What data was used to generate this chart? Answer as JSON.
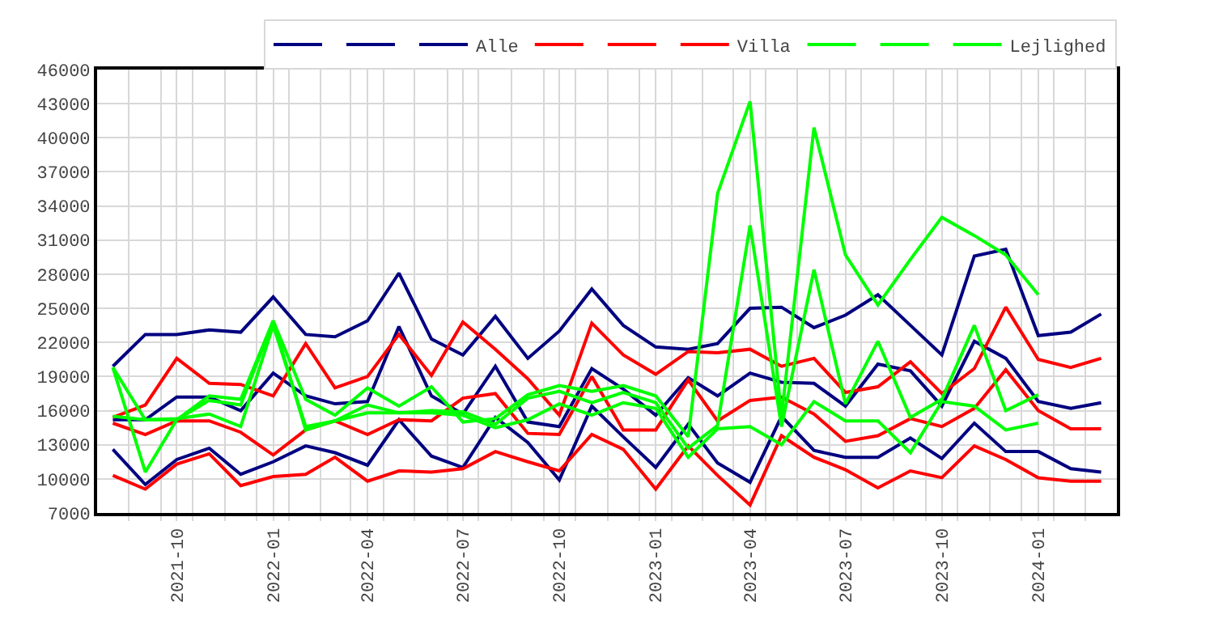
{
  "chart_data": {
    "type": "line",
    "x": [
      "2021-08",
      "2021-09",
      "2021-10",
      "2021-11",
      "2021-12",
      "2022-01",
      "2022-02",
      "2022-03",
      "2022-04",
      "2022-05",
      "2022-06",
      "2022-07",
      "2022-08",
      "2022-09",
      "2022-10",
      "2022-11",
      "2022-12",
      "2023-01",
      "2023-02",
      "2023-03",
      "2023-04",
      "2023-05",
      "2023-06",
      "2023-07",
      "2023-08",
      "2023-09",
      "2023-10",
      "2023-11",
      "2023-12",
      "2024-01",
      "2024-02",
      "2024-03"
    ],
    "series": [
      {
        "color": "#000080",
        "values": [
          19900,
          22700,
          22700,
          23100,
          22900,
          26000,
          22700,
          22500,
          23900,
          28100,
          22300,
          20900,
          24300,
          20600,
          23000,
          26700,
          23500,
          21600,
          21400,
          21900,
          25000,
          25100,
          23300,
          24400,
          26200,
          23500,
          20900,
          29600,
          30200,
          22600,
          22900,
          24500
        ]
      },
      {
        "color": "#000080",
        "values": [
          15200,
          15200,
          17200,
          17200,
          16000,
          19300,
          17300,
          16600,
          16800,
          23400,
          17300,
          15700,
          19900,
          15000,
          14600,
          19700,
          17900,
          15600,
          18900,
          17300,
          19300,
          18500,
          18400,
          16400,
          20100,
          19500,
          16400,
          22100,
          20600,
          16800,
          16200,
          16700
        ]
      },
      {
        "name": "Alle",
        "color": "#000080",
        "values": [
          12600,
          9500,
          11700,
          12700,
          10400,
          11500,
          12900,
          12300,
          11200,
          15200,
          12000,
          11000,
          15400,
          13200,
          9900,
          16400,
          13700,
          11000,
          14800,
          11400,
          9700,
          15500,
          12500,
          11900,
          11900,
          13600,
          11800,
          14900,
          12400,
          12400,
          10900,
          10600
        ]
      },
      {
        "color": "#ff0000",
        "values": [
          15400,
          16500,
          20600,
          18400,
          18300,
          17300,
          21900,
          18000,
          19000,
          22700,
          19100,
          23800,
          21400,
          18800,
          15600,
          23700,
          20900,
          19200,
          21200,
          21100,
          21400,
          19900,
          20600,
          17600,
          18100,
          20300,
          17500,
          19700,
          25100,
          20500,
          19800,
          20600
        ]
      },
      {
        "color": "#ff0000",
        "values": [
          14900,
          13900,
          15100,
          15100,
          14100,
          12100,
          14300,
          15100,
          13900,
          15200,
          15100,
          17100,
          17500,
          14000,
          13900,
          19000,
          14300,
          14300,
          18700,
          15100,
          16900,
          17200,
          15700,
          13300,
          13800,
          15300,
          14600,
          16200,
          19600,
          16000,
          14400,
          14400
        ]
      },
      {
        "name": "Villa",
        "color": "#ff0000",
        "values": [
          10300,
          9100,
          11300,
          12200,
          9400,
          10200,
          10400,
          11900,
          9800,
          10700,
          10600,
          10900,
          12400,
          11500,
          10700,
          13900,
          12600,
          9100,
          12900,
          10300,
          7700,
          13800,
          11900,
          10800,
          9200,
          10700,
          10100,
          12900,
          11700,
          10100,
          9800,
          9800
        ]
      },
      {
        "color": "#00ff00",
        "values": [
          19800,
          15200,
          15200,
          17300,
          17000,
          23900,
          17000,
          15600,
          18000,
          16400,
          18100,
          15000,
          15300,
          17400,
          18200,
          17700,
          18200,
          17300,
          13700,
          35100,
          43200,
          15500,
          40900,
          29700,
          25300,
          29300,
          33000,
          31400,
          29700,
          26200,
          null,
          null
        ]
      },
      {
        "color": "#00ff00",
        "values": [
          19800,
          10600,
          15200,
          16900,
          16500,
          23900,
          14300,
          15100,
          16500,
          15800,
          16000,
          15900,
          14800,
          17100,
          17700,
          16700,
          17600,
          16700,
          12700,
          14700,
          32300,
          14600,
          28400,
          16600,
          22100,
          15400,
          17000,
          23500,
          16000,
          17400,
          null,
          null
        ]
      },
      {
        "name": "Lejlighed",
        "color": "#00ff00",
        "values": [
          15500,
          15200,
          15300,
          15700,
          14600,
          23500,
          14600,
          15100,
          15800,
          15800,
          15800,
          15600,
          14500,
          15200,
          16600,
          15600,
          16700,
          16200,
          11900,
          14400,
          14600,
          13000,
          16800,
          15100,
          15100,
          12300,
          16800,
          16400,
          14300,
          14900,
          null,
          null
        ]
      }
    ],
    "xlim": [
      "2021-07-17",
      "2024-03-16"
    ],
    "xticks": [
      {
        "value": "2021-10",
        "label": "2021-10"
      },
      {
        "value": "2022-01",
        "label": "2022-01"
      },
      {
        "value": "2022-04",
        "label": "2022-04"
      },
      {
        "value": "2022-07",
        "label": "2022-07"
      },
      {
        "value": "2022-10",
        "label": "2022-10"
      },
      {
        "value": "2023-01",
        "label": "2023-01"
      },
      {
        "value": "2023-04",
        "label": "2023-04"
      },
      {
        "value": "2023-07",
        "label": "2023-07"
      },
      {
        "value": "2023-10",
        "label": "2023-10"
      },
      {
        "value": "2024-01",
        "label": "2024-01"
      },
      {
        "value": "2021-08-16",
        "label": null
      },
      {
        "value": "2021-09-16",
        "label": null
      },
      {
        "value": "2021-10-16",
        "label": null
      },
      {
        "value": "2021-11-16",
        "label": null
      },
      {
        "value": "2021-12-16",
        "label": null
      },
      {
        "value": "2022-01-16",
        "label": null
      },
      {
        "value": "2022-02-15",
        "label": null
      },
      {
        "value": "2022-03-16",
        "label": null
      },
      {
        "value": "2022-04-16",
        "label": null
      },
      {
        "value": "2022-05-16",
        "label": null
      },
      {
        "value": "2022-06-16",
        "label": null
      },
      {
        "value": "2022-07-16",
        "label": null
      },
      {
        "value": "2022-08-16",
        "label": null
      },
      {
        "value": "2022-09-16",
        "label": null
      },
      {
        "value": "2022-10-16",
        "label": null
      },
      {
        "value": "2022-11-16",
        "label": null
      },
      {
        "value": "2022-12-16",
        "label": null
      },
      {
        "value": "2023-01-16",
        "label": null
      },
      {
        "value": "2023-02-15",
        "label": null
      },
      {
        "value": "2023-03-16",
        "label": null
      },
      {
        "value": "2023-04-16",
        "label": null
      },
      {
        "value": "2023-05-16",
        "label": null
      },
      {
        "value": "2023-06-16",
        "label": null
      },
      {
        "value": "2023-07-16",
        "label": null
      },
      {
        "value": "2023-08-16",
        "label": null
      },
      {
        "value": "2023-09-16",
        "label": null
      },
      {
        "value": "2023-10-16",
        "label": null
      },
      {
        "value": "2023-11-16",
        "label": null
      },
      {
        "value": "2023-12-16",
        "label": null
      },
      {
        "value": "2024-01-16",
        "label": null
      },
      {
        "value": "2024-02-15",
        "label": null
      }
    ],
    "ylim": [
      7000,
      46000
    ],
    "yticks": [
      7000,
      10000,
      13000,
      16000,
      19000,
      22000,
      25000,
      28000,
      31000,
      34000,
      37000,
      40000,
      43000,
      46000
    ],
    "grid": true,
    "legend": "top right",
    "marker": "none",
    "line_style": "solid"
  }
}
